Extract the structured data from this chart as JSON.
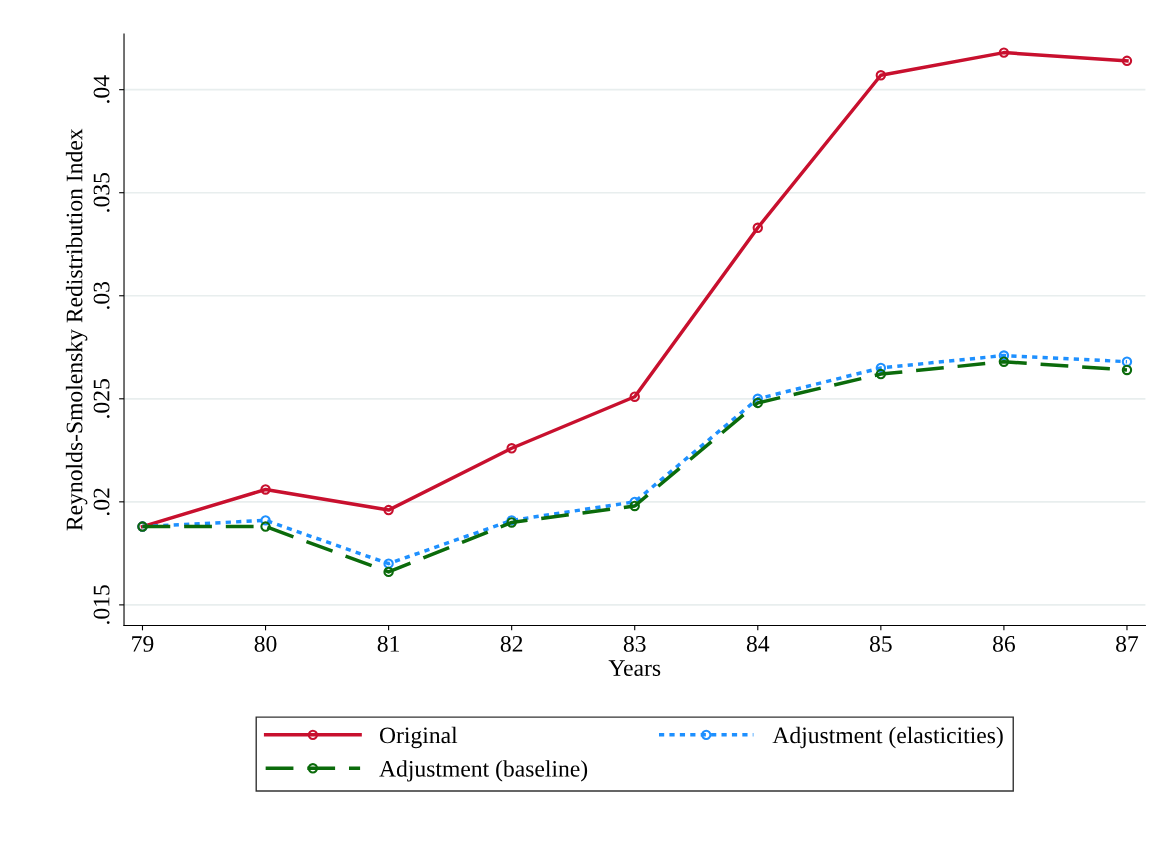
{
  "chart_data": {
    "type": "line",
    "xlabel": "Years",
    "ylabel": "Reynolds-Smolensky Redistribution Index",
    "x": [
      79,
      80,
      81,
      82,
      83,
      84,
      85,
      86,
      87
    ],
    "series": [
      {
        "name": "Original",
        "color": "#c8102e",
        "line_style": "solid",
        "values": [
          0.0188,
          0.0206,
          0.0196,
          0.0226,
          0.0251,
          0.0333,
          0.0407,
          0.0418,
          0.0414
        ]
      },
      {
        "name": "Adjustment (elasticities)",
        "color": "#1e90ff",
        "line_style": "dotted",
        "values": [
          0.0188,
          0.0191,
          0.017,
          0.0191,
          0.02,
          0.025,
          0.0265,
          0.0271,
          0.0268
        ]
      },
      {
        "name": "Adjustment (baseline)",
        "color": "#0b6b0b",
        "line_style": "dashed",
        "values": [
          0.0188,
          0.0188,
          0.0166,
          0.019,
          0.0198,
          0.0248,
          0.0262,
          0.0268,
          0.0264
        ]
      }
    ],
    "xlim": [
      78.85,
      87.15
    ],
    "xticks": [
      79,
      80,
      81,
      82,
      83,
      84,
      85,
      86,
      87
    ],
    "ylim": [
      0.014,
      0.0427
    ],
    "yticks": [
      {
        "value": 0.015,
        "label": ".015"
      },
      {
        "value": 0.02,
        "label": ".02"
      },
      {
        "value": 0.025,
        "label": ".025"
      },
      {
        "value": 0.03,
        "label": ".03"
      },
      {
        "value": 0.035,
        "label": ".035"
      },
      {
        "value": 0.04,
        "label": ".04"
      }
    ],
    "grid": "y",
    "legend": "bottom",
    "marker": "circle"
  }
}
